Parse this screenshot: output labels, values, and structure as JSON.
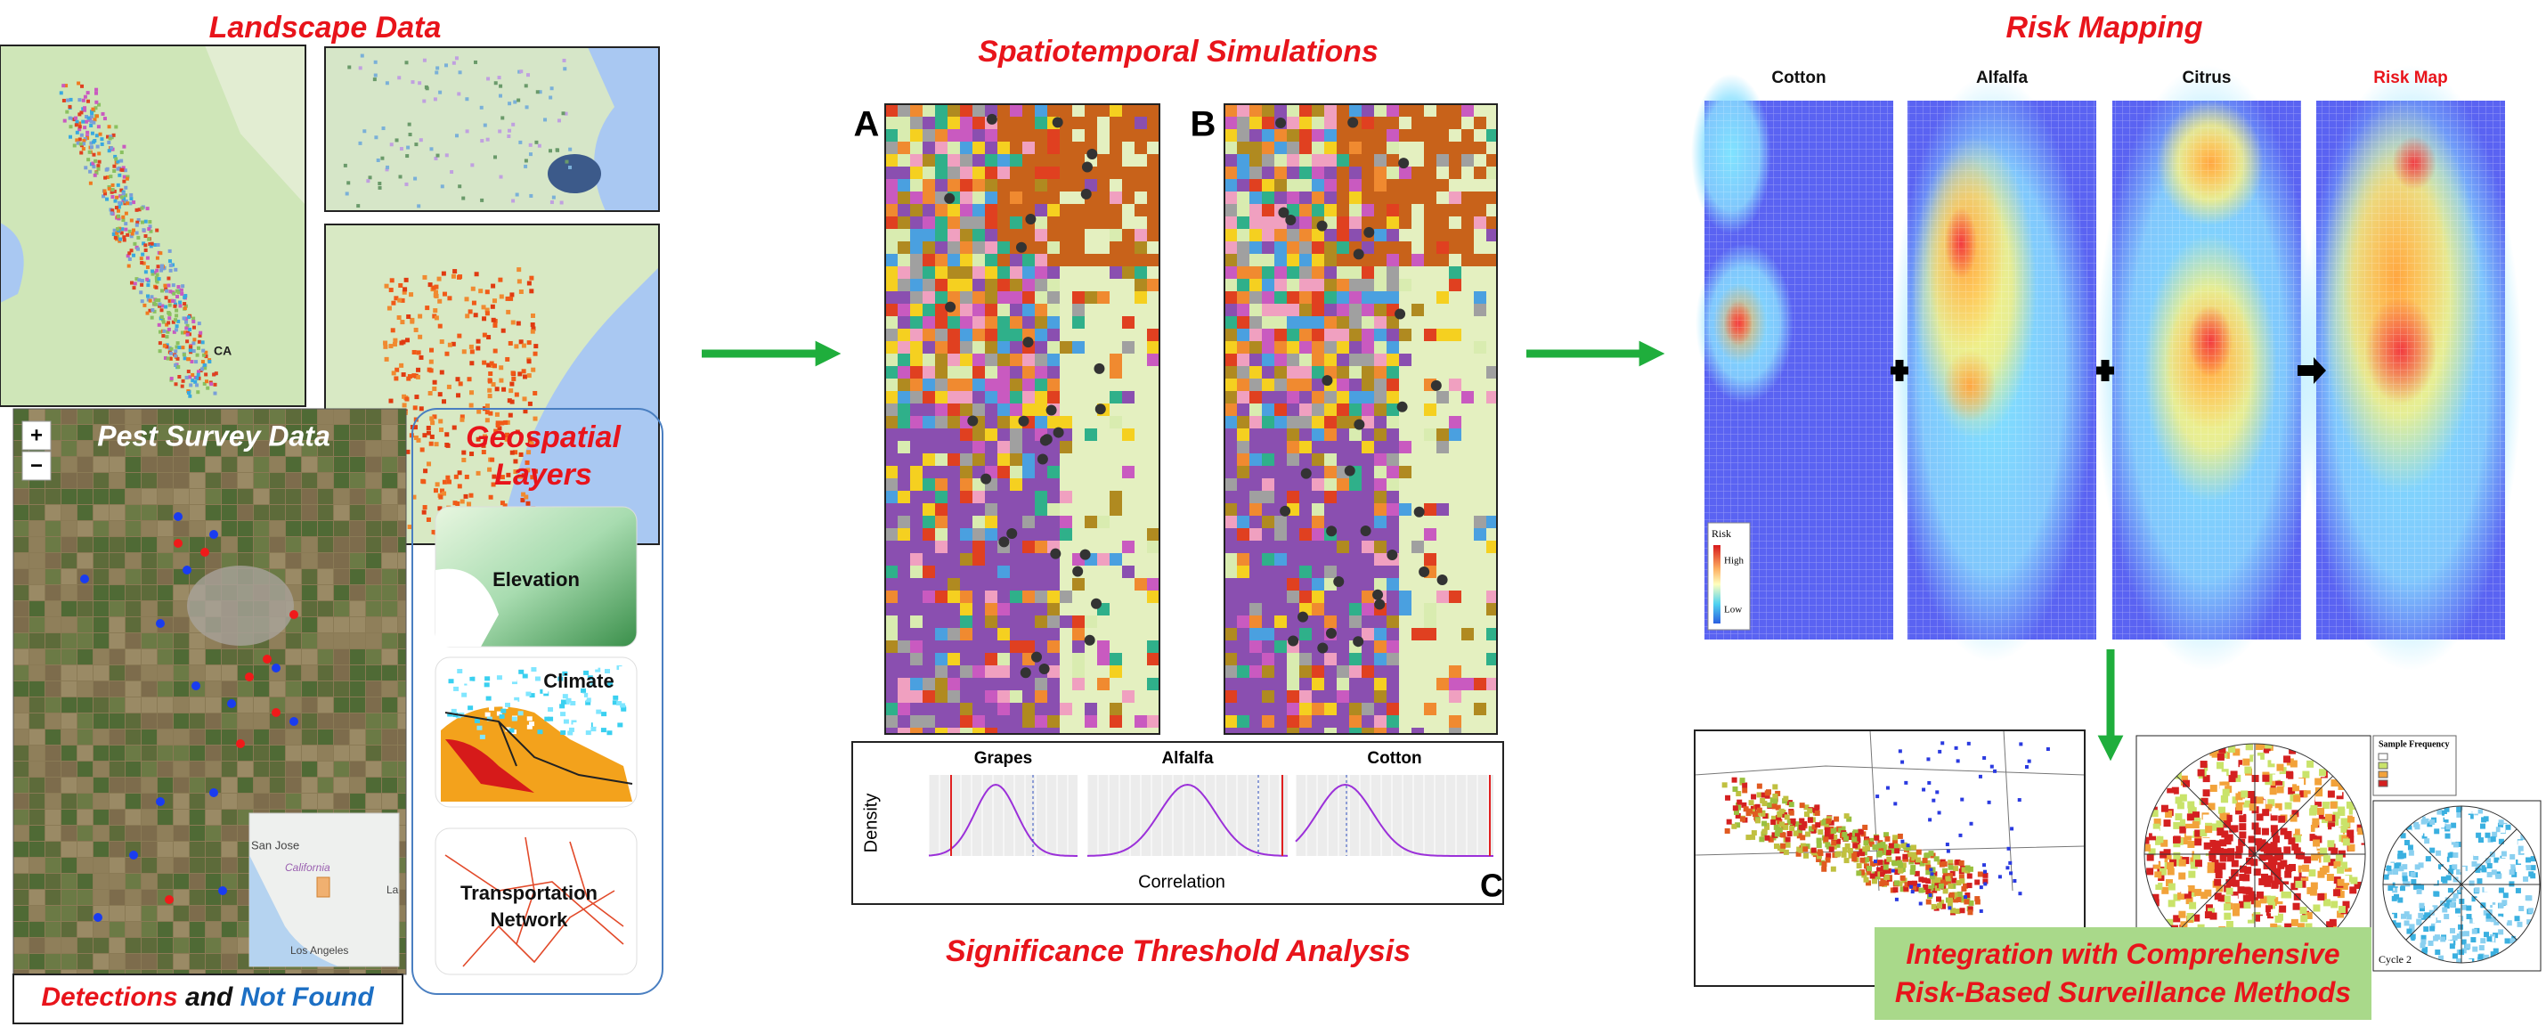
{
  "landscape": {
    "title": "Landscape Data",
    "map_label": "CA"
  },
  "pest_survey": {
    "title": "Pest Survey Data",
    "zoom_in": "+",
    "zoom_out": "−",
    "inset_labels": [
      "San Jose",
      "California",
      "Los Angeles",
      "La"
    ],
    "legend": {
      "detections": "Detections",
      "and": "and",
      "not_found": "Not Found"
    }
  },
  "geospatial": {
    "title": "Geospatial Layers",
    "layers": [
      "Elevation",
      "Climate",
      "Transportation Network"
    ]
  },
  "simulations": {
    "title": "Spatiotemporal Simulations",
    "panels": [
      "A",
      "B"
    ]
  },
  "threshold": {
    "title": "Significance Threshold Analysis",
    "panel": "C",
    "plots": [
      "Grapes",
      "Alfalfa",
      "Cotton"
    ],
    "y_label": "Density",
    "x_label": "Correlation"
  },
  "risk_mapping": {
    "title": "Risk Mapping",
    "maps": [
      "Cotton",
      "Alfalfa",
      "Citrus",
      "Risk Map"
    ],
    "legend": {
      "title": "Risk",
      "high": "High",
      "low": "Low"
    }
  },
  "integration": {
    "title": "Integration with Comprehensive Risk-Based Surveillance Methods",
    "legend_title": "Sample Frequency",
    "cycle": "Cycle 2"
  }
}
